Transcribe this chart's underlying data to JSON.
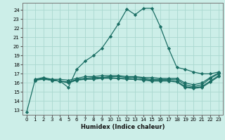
{
  "xlabel": "Humidex (Indice chaleur)",
  "bg_color": "#cceee8",
  "grid_color": "#aad8d0",
  "line_color": "#1a6e64",
  "xlim": [
    -0.5,
    23.5
  ],
  "ylim": [
    12.5,
    24.8
  ],
  "yticks": [
    13,
    14,
    15,
    16,
    17,
    18,
    19,
    20,
    21,
    22,
    23,
    24
  ],
  "xticks": [
    0,
    1,
    2,
    3,
    4,
    5,
    6,
    7,
    8,
    9,
    10,
    11,
    12,
    13,
    14,
    15,
    16,
    17,
    18,
    19,
    20,
    21,
    22,
    23
  ],
  "curves": [
    {
      "x": [
        0,
        1,
        2,
        3,
        4,
        5,
        6,
        7,
        8,
        9,
        10,
        11,
        12,
        13,
        14,
        15,
        16,
        17,
        18,
        19,
        20,
        21,
        22,
        23
      ],
      "y": [
        12.8,
        16.3,
        16.5,
        16.3,
        16.2,
        15.5,
        17.5,
        18.4,
        19.0,
        19.8,
        21.1,
        22.5,
        24.1,
        23.5,
        24.2,
        24.2,
        22.2,
        19.8,
        17.7,
        17.5,
        17.2,
        17.0,
        17.0,
        17.2
      ]
    },
    {
      "x": [
        1,
        2,
        3,
        4,
        5,
        6,
        7,
        8,
        9,
        10,
        11,
        12,
        13,
        14,
        15,
        16,
        17,
        18,
        19,
        20,
        21,
        22,
        23
      ],
      "y": [
        16.3,
        16.5,
        16.3,
        16.2,
        16.1,
        16.4,
        16.5,
        16.6,
        16.6,
        16.7,
        16.7,
        16.6,
        16.6,
        16.5,
        16.4,
        16.4,
        16.4,
        16.4,
        15.8,
        15.6,
        15.8,
        16.5,
        17.0
      ]
    },
    {
      "x": [
        1,
        2,
        3,
        4,
        5,
        6,
        7,
        8,
        9,
        10,
        11,
        12,
        13,
        14,
        15,
        16,
        17,
        18,
        19,
        20,
        21,
        22,
        23
      ],
      "y": [
        16.4,
        16.6,
        16.4,
        16.4,
        16.3,
        16.5,
        16.7,
        16.7,
        16.8,
        16.8,
        16.8,
        16.7,
        16.7,
        16.6,
        16.6,
        16.5,
        16.5,
        16.5,
        16.0,
        15.8,
        16.0,
        16.6,
        17.1
      ]
    },
    {
      "x": [
        1,
        2,
        3,
        4,
        5,
        6,
        7,
        8,
        9,
        10,
        11,
        12,
        13,
        14,
        15,
        16,
        17,
        18,
        19,
        20,
        21,
        22,
        23
      ],
      "y": [
        16.3,
        16.5,
        16.3,
        16.2,
        16.1,
        16.3,
        16.5,
        16.5,
        16.6,
        16.6,
        16.5,
        16.5,
        16.4,
        16.4,
        16.3,
        16.3,
        16.3,
        16.2,
        15.6,
        15.5,
        15.6,
        16.2,
        16.8
      ]
    },
    {
      "x": [
        1,
        2,
        3,
        4,
        5,
        6,
        7,
        8,
        9,
        10,
        11,
        12,
        13,
        14,
        15,
        16,
        17,
        18,
        19,
        20,
        21,
        22,
        23
      ],
      "y": [
        16.3,
        16.4,
        16.3,
        16.2,
        16.0,
        16.3,
        16.4,
        16.4,
        16.5,
        16.5,
        16.5,
        16.4,
        16.4,
        16.3,
        16.2,
        16.2,
        16.2,
        16.1,
        15.5,
        15.4,
        15.5,
        16.1,
        16.7
      ]
    }
  ],
  "marker": "D",
  "markersize": 2.2,
  "linewidth": 0.9
}
